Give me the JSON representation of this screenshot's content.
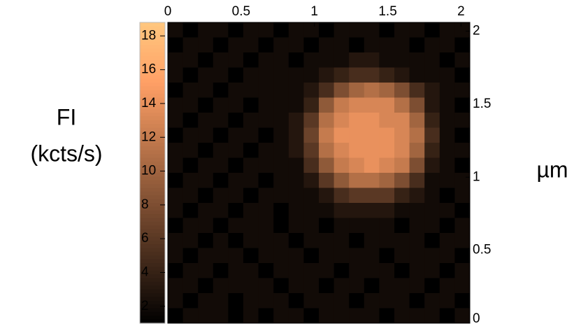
{
  "chart_data": {
    "type": "heatmap",
    "colormap": "copper",
    "colorbar_label": [
      "FI",
      "(kcts/s)"
    ],
    "axis_unit": "µm",
    "xlim": [
      0,
      2.06
    ],
    "xticks": [
      0,
      0.5,
      1,
      1.5,
      2
    ],
    "ylim": [
      0,
      2.06
    ],
    "yticks": [
      0,
      0.5,
      1,
      1.5,
      2
    ],
    "clim": [
      1,
      18.8
    ],
    "cticks": [
      2,
      4,
      6,
      8,
      10,
      12,
      14,
      16,
      18
    ],
    "values": [
      [
        2,
        1,
        2,
        2,
        1,
        2,
        2,
        1,
        2,
        2,
        1,
        2,
        2,
        2,
        1,
        2,
        2,
        1,
        2,
        2
      ],
      [
        1,
        2,
        2,
        1,
        2,
        2,
        1,
        2,
        2,
        1,
        2,
        2,
        1,
        2,
        2,
        2,
        1,
        2,
        2,
        1
      ],
      [
        2,
        2,
        1,
        2,
        2,
        1,
        2,
        2,
        1,
        2,
        2,
        2,
        3,
        3,
        2,
        2,
        2,
        2,
        1,
        2
      ],
      [
        2,
        1,
        2,
        2,
        1,
        2,
        2,
        2,
        2,
        2,
        3,
        4,
        5,
        5,
        4,
        3,
        2,
        2,
        2,
        1
      ],
      [
        1,
        2,
        2,
        1,
        2,
        2,
        2,
        2,
        2,
        3,
        5,
        8,
        10,
        11,
        10,
        8,
        5,
        3,
        2,
        2
      ],
      [
        2,
        2,
        1,
        2,
        2,
        1,
        2,
        2,
        2,
        4,
        9,
        12,
        13,
        13,
        13,
        11,
        8,
        3,
        2,
        1
      ],
      [
        2,
        1,
        2,
        2,
        1,
        2,
        2,
        2,
        3,
        6,
        11,
        13,
        14,
        14,
        13,
        13,
        10,
        4,
        2,
        2
      ],
      [
        1,
        2,
        2,
        1,
        2,
        2,
        1,
        2,
        3,
        7,
        12,
        14,
        14,
        14,
        14,
        13,
        11,
        5,
        2,
        1
      ],
      [
        2,
        2,
        1,
        2,
        2,
        1,
        2,
        2,
        3,
        6,
        11,
        13,
        14,
        14,
        14,
        13,
        10,
        4,
        2,
        2
      ],
      [
        2,
        1,
        2,
        2,
        1,
        2,
        2,
        2,
        2,
        5,
        9,
        12,
        13,
        14,
        13,
        12,
        8,
        3,
        2,
        1
      ],
      [
        1,
        2,
        2,
        1,
        2,
        2,
        1,
        2,
        2,
        3,
        6,
        9,
        11,
        11,
        10,
        8,
        5,
        2,
        2,
        2
      ],
      [
        2,
        2,
        1,
        2,
        2,
        1,
        2,
        2,
        2,
        2,
        3,
        5,
        6,
        6,
        6,
        4,
        3,
        2,
        1,
        2
      ],
      [
        2,
        1,
        2,
        2,
        1,
        2,
        2,
        1,
        2,
        2,
        2,
        3,
        3,
        3,
        3,
        2,
        2,
        2,
        2,
        1
      ],
      [
        1,
        2,
        2,
        1,
        2,
        2,
        2,
        1,
        2,
        2,
        1,
        2,
        2,
        2,
        2,
        1,
        2,
        2,
        1,
        2
      ],
      [
        2,
        2,
        1,
        2,
        1,
        2,
        2,
        2,
        1,
        2,
        2,
        2,
        1,
        2,
        2,
        2,
        2,
        1,
        2,
        2
      ],
      [
        2,
        1,
        2,
        2,
        2,
        1,
        2,
        2,
        2,
        1,
        2,
        2,
        2,
        2,
        1,
        2,
        2,
        2,
        2,
        1
      ],
      [
        1,
        2,
        2,
        1,
        2,
        2,
        1,
        2,
        2,
        2,
        2,
        1,
        2,
        2,
        2,
        1,
        2,
        2,
        1,
        2
      ],
      [
        2,
        2,
        1,
        2,
        2,
        2,
        2,
        1,
        2,
        2,
        1,
        2,
        2,
        1,
        2,
        2,
        2,
        1,
        2,
        2
      ],
      [
        2,
        1,
        2,
        2,
        1,
        2,
        2,
        2,
        1,
        2,
        2,
        2,
        1,
        2,
        2,
        2,
        1,
        2,
        2,
        1
      ],
      [
        1,
        2,
        2,
        2,
        1,
        2,
        1,
        2,
        2,
        1,
        2,
        2,
        2,
        2,
        1,
        2,
        2,
        2,
        1,
        2
      ]
    ]
  }
}
